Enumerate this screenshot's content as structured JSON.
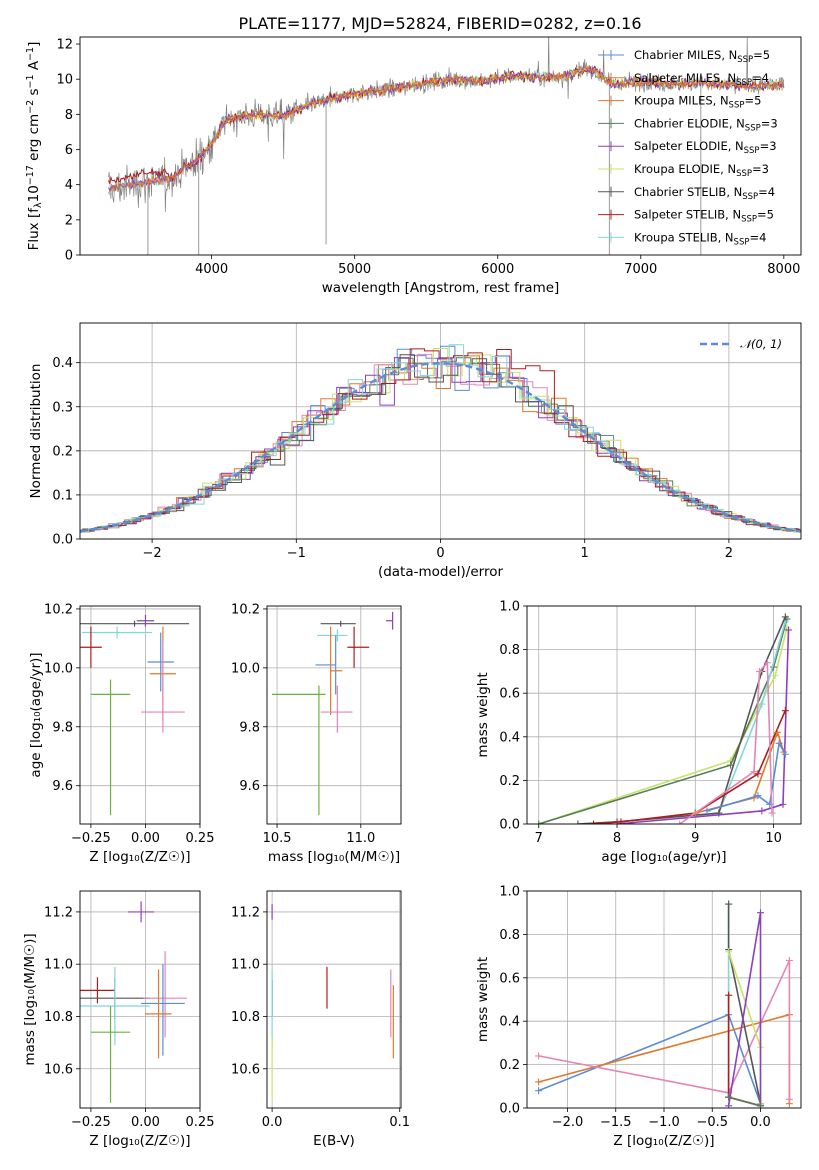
{
  "figure_title": "PLATE=1177, MJD=52824, FIBERID=0282, z=0.16",
  "colors": {
    "chabrier_miles": "#5b8bd9",
    "salpeter_miles": "#e07a2b",
    "kroupa_miles": "#e07a2b",
    "chabrier_elodie": "#5a7d5a",
    "salpeter_elodie": "#8e3fbf",
    "kroupa_elodie": "#c8e36a",
    "chabrier_stelib": "#555555",
    "salpeter_stelib": "#b01c1c",
    "kroupa_stelib": "#7fd6dc",
    "pink": "#e485b6",
    "olive": "#6bb23a",
    "grey_data": "#808080",
    "normal": "#5b8bd9"
  },
  "chart_data": [
    {
      "id": "spectrum",
      "type": "line",
      "title": "PLATE=1177, MJD=52824, FIBERID=0282, z=0.16",
      "xlabel": "wavelength [Angstrom, rest frame]",
      "ylabel_parts": [
        "Flux [f",
        "λ",
        "10",
        "−17",
        " erg cm",
        "−2",
        " s",
        "−1",
        " A",
        "−1",
        "]"
      ],
      "xlim": [
        3080,
        8120
      ],
      "ylim": [
        0,
        12.4
      ],
      "xticks": [
        "4000",
        "5000",
        "6000",
        "7000",
        "8000"
      ],
      "yticks": [
        "0",
        "2",
        "4",
        "6",
        "8",
        "10",
        "12"
      ],
      "grid": false,
      "legend_position": "top-right",
      "legend": [
        {
          "label": "Chabrier MILES, N",
          "sub": "SSP",
          "suffix": "=5",
          "color_key": "chabrier_miles"
        },
        {
          "label": "Salpeter MILES, N",
          "sub": "SSP",
          "suffix": "=4",
          "color_key": "salpeter_miles"
        },
        {
          "label": "Kroupa MILES, N",
          "sub": "SSP",
          "suffix": "=5",
          "color_key": "kroupa_miles"
        },
        {
          "label": "Chabrier ELODIE, N",
          "sub": "SSP",
          "suffix": "=3",
          "color_key": "chabrier_elodie"
        },
        {
          "label": "Salpeter ELODIE, N",
          "sub": "SSP",
          "suffix": "=3",
          "color_key": "salpeter_elodie"
        },
        {
          "label": "Kroupa ELODIE, N",
          "sub": "SSP",
          "suffix": "=3",
          "color_key": "kroupa_elodie"
        },
        {
          "label": "Chabrier STELIB, N",
          "sub": "SSP",
          "suffix": "=4",
          "color_key": "chabrier_stelib"
        },
        {
          "label": "Salpeter STELIB, N",
          "sub": "SSP",
          "suffix": "=5",
          "color_key": "salpeter_stelib"
        },
        {
          "label": "Kroupa STELIB, N",
          "sub": "SSP",
          "suffix": "=4",
          "color_key": "kroupa_stelib"
        }
      ],
      "data_trend": {
        "x": [
          3280,
          3500,
          3700,
          3800,
          3900,
          4000,
          4100,
          4300,
          4500,
          4700,
          4900,
          5100,
          5300,
          5500,
          5700,
          5900,
          6100,
          6300,
          6500,
          6600,
          6700,
          6800,
          7000,
          7200,
          7400,
          7600,
          7800,
          8000
        ],
        "y": [
          3.7,
          4.1,
          4.3,
          4.9,
          5.4,
          6.3,
          7.7,
          8.0,
          7.9,
          8.6,
          9.0,
          9.3,
          9.5,
          9.8,
          10.0,
          9.9,
          10.2,
          10.1,
          10.2,
          10.6,
          10.4,
          9.7,
          9.9,
          9.7,
          9.8,
          9.7,
          9.6,
          9.7
        ]
      }
    },
    {
      "id": "residuals",
      "type": "step-histogram",
      "xlabel": "(data-model)/error",
      "ylabel": "Normed distribution",
      "xlim": [
        -2.5,
        2.5
      ],
      "ylim": [
        0,
        0.49
      ],
      "xticks": [
        "−2",
        "−1",
        "0",
        "1",
        "2"
      ],
      "yticks": [
        "0.0",
        "0.1",
        "0.2",
        "0.3",
        "0.4"
      ],
      "grid": true,
      "legend_position": "top-right",
      "legend_label": "𝒩(0, 1)",
      "bin_width": 0.1,
      "reference_curve": "normal(0,1)"
    },
    {
      "id": "age_vs_Z",
      "type": "errorbar",
      "xlabel": "Z [log₁₀(Z/Z☉)]",
      "ylabel": "age  [log₁₀(age/yr)]",
      "xlim": [
        -0.3,
        0.25
      ],
      "ylim": [
        9.47,
        10.21
      ],
      "xticks": [
        "−0.25",
        "0.00",
        "0.25"
      ],
      "yticks": [
        "9.6",
        "9.8",
        "10.0",
        "10.2"
      ],
      "points": [
        {
          "c": "chabrier_stelib",
          "x": -0.05,
          "ex": [
            0.25,
            0.25
          ],
          "y": 10.15,
          "ey": [
            0.01,
            0.01
          ]
        },
        {
          "c": "salpeter_elodie",
          "x": 0.0,
          "ex": [
            0.04,
            0.04
          ],
          "y": 10.16,
          "ey": [
            0.02,
            0.02
          ]
        },
        {
          "c": "kroupa_stelib",
          "x": -0.13,
          "ex": [
            0.16,
            0.16
          ],
          "y": 10.12,
          "ey": [
            0.02,
            0.02
          ]
        },
        {
          "c": "salpeter_stelib",
          "x": -0.25,
          "ex": [
            0.05,
            0.05
          ],
          "y": 10.07,
          "ey": [
            0.07,
            0.07
          ]
        },
        {
          "c": "chabrier_miles",
          "x": 0.07,
          "ex": [
            0.06,
            0.06
          ],
          "y": 10.02,
          "ey": [
            0.1,
            0.1
          ]
        },
        {
          "c": "salpeter_miles",
          "x": 0.08,
          "ex": [
            0.06,
            0.06
          ],
          "y": 9.98,
          "ey": [
            0.16,
            0.16
          ]
        },
        {
          "c": "pink",
          "x": 0.08,
          "ex": [
            0.1,
            0.1
          ],
          "y": 9.85,
          "ey": [
            0.07,
            0.24
          ]
        },
        {
          "c": "olive",
          "x": -0.16,
          "ex": [
            0.09,
            0.09
          ],
          "y": 9.91,
          "ey": [
            0.41,
            0.05
          ]
        }
      ]
    },
    {
      "id": "age_vs_mass",
      "type": "errorbar",
      "xlabel": "mass [log₁₀(M/M☉)]",
      "ylabel": "",
      "xlim": [
        10.44,
        11.24
      ],
      "ylim": [
        9.47,
        10.21
      ],
      "xticks": [
        "10.5",
        "11.0"
      ],
      "yticks": [
        "9.6",
        "9.8",
        "10.0",
        "10.2"
      ],
      "points": [
        {
          "c": "chabrier_stelib",
          "x": 10.88,
          "ex": [
            0.12,
            0.09
          ],
          "y": 10.15,
          "ey": [
            0.01,
            0.01
          ]
        },
        {
          "c": "salpeter_elodie",
          "x": 11.19,
          "ex": [
            0.04,
            0.0
          ],
          "y": 10.16,
          "ey": [
            0.03,
            0.03
          ]
        },
        {
          "c": "kroupa_stelib",
          "x": 10.86,
          "ex": [
            0.12,
            0.06
          ],
          "y": 10.11,
          "ey": [
            0.02,
            0.02
          ]
        },
        {
          "c": "salpeter_stelib",
          "x": 10.96,
          "ex": [
            0.04,
            0.09
          ],
          "y": 10.07,
          "ey": [
            0.07,
            0.07
          ]
        },
        {
          "c": "chabrier_miles",
          "x": 10.85,
          "ex": [
            0.12,
            0.0
          ],
          "y": 10.01,
          "ey": [
            0.1,
            0.1
          ]
        },
        {
          "c": "salpeter_miles",
          "x": 10.82,
          "ex": [
            0.0,
            0.07
          ],
          "y": 9.99,
          "ey": [
            0.15,
            0.15
          ]
        },
        {
          "c": "pink",
          "x": 10.86,
          "ex": [
            0.1,
            0.09
          ],
          "y": 9.85,
          "ey": [
            0.07,
            0.09
          ]
        },
        {
          "c": "olive",
          "x": 10.75,
          "ex": [
            0.28,
            0.04
          ],
          "y": 9.91,
          "ey": [
            0.41,
            0.03
          ]
        }
      ]
    },
    {
      "id": "cum_weight_vs_age",
      "type": "line",
      "xlabel": "age  [log₁₀(age/yr)]",
      "ylabel": "mass weight",
      "xlim": [
        6.85,
        10.35
      ],
      "ylim": [
        0,
        1
      ],
      "xticks": [
        "7",
        "8",
        "9",
        "10"
      ],
      "yticks": [
        "0.0",
        "0.2",
        "0.4",
        "0.6",
        "0.8",
        "1.0"
      ],
      "grid": true,
      "series": [
        {
          "c": "kroupa_elodie",
          "x": [
            7.0,
            9.45,
            10.02,
            10.17
          ],
          "y": [
            0.0,
            0.29,
            0.68,
            0.9
          ]
        },
        {
          "c": "chabrier_elodie",
          "x": [
            7.0,
            9.45,
            10.0,
            10.17
          ],
          "y": [
            0.0,
            0.27,
            0.72,
            0.94
          ]
        },
        {
          "c": "kroupa_stelib",
          "x": [
            9.3,
            9.85,
            10.15
          ],
          "y": [
            0.05,
            0.55,
            0.93
          ]
        },
        {
          "c": "chabrier_stelib",
          "x": [
            7.5,
            8.0,
            9.3,
            9.85,
            10.15
          ],
          "y": [
            0.0,
            0.01,
            0.05,
            0.7,
            0.95
          ]
        },
        {
          "c": "salpeter_elodie",
          "x": [
            8.0,
            9.85,
            10.12,
            10.19
          ],
          "y": [
            0.0,
            0.06,
            0.09,
            0.89
          ]
        },
        {
          "c": "salpeter_stelib",
          "x": [
            7.7,
            8.05,
            9.0,
            9.8,
            10.15
          ],
          "y": [
            0.0,
            0.01,
            0.05,
            0.23,
            0.52
          ]
        },
        {
          "c": "salpeter_miles",
          "x": [
            9.0,
            9.75,
            10.05,
            10.13
          ],
          "y": [
            0.05,
            0.12,
            0.42,
            0.33
          ]
        },
        {
          "c": "chabrier_miles",
          "x": [
            9.15,
            9.8,
            9.95,
            10.07,
            10.15
          ],
          "y": [
            0.06,
            0.13,
            0.09,
            0.37,
            0.32
          ]
        },
        {
          "c": "pink",
          "x": [
            8.8,
            9.75,
            9.82,
            9.92,
            9.98
          ],
          "y": [
            0.0,
            0.24,
            0.7,
            0.74,
            0.05
          ]
        }
      ]
    },
    {
      "id": "mass_vs_Z",
      "type": "errorbar",
      "xlabel": "Z [log₁₀(Z/Z☉)]",
      "ylabel": "mass [log₁₀(M/M☉)]",
      "xlim": [
        -0.3,
        0.25
      ],
      "ylim": [
        10.45,
        11.28
      ],
      "xticks": [
        "−0.25",
        "0.00",
        "0.25"
      ],
      "yticks": [
        "10.6",
        "10.8",
        "11.0",
        "11.2"
      ],
      "points": [
        {
          "c": "salpeter_elodie",
          "x": -0.02,
          "ex": [
            0.06,
            0.06
          ],
          "y": 11.2,
          "ey": [
            0.04,
            0.04
          ]
        },
        {
          "c": "salpeter_stelib",
          "x": -0.22,
          "ex": [
            0.08,
            0.08
          ],
          "y": 10.9,
          "ey": [
            0.05,
            0.05
          ]
        },
        {
          "c": "chabrier_stelib",
          "x": -0.14,
          "ex": [
            0.16,
            0.16
          ],
          "y": 10.87,
          "ey": [
            0.08,
            0.08
          ]
        },
        {
          "c": "pink",
          "x": 0.09,
          "ex": [
            0.1,
            0.1
          ],
          "y": 10.87,
          "ey": [
            0.15,
            0.18
          ]
        },
        {
          "c": "chabrier_miles",
          "x": 0.08,
          "ex": [
            0.1,
            0.1
          ],
          "y": 10.85,
          "ey": [
            0.2,
            0.15
          ]
        },
        {
          "c": "kroupa_stelib",
          "x": -0.14,
          "ex": [
            0.16,
            0.16
          ],
          "y": 10.84,
          "ey": [
            0.15,
            0.15
          ]
        },
        {
          "c": "salpeter_miles",
          "x": 0.06,
          "ex": [
            0.06,
            0.06
          ],
          "y": 10.81,
          "ey": [
            0.17,
            0.17
          ]
        },
        {
          "c": "olive",
          "x": -0.16,
          "ex": [
            0.09,
            0.09
          ],
          "y": 10.74,
          "ey": [
            0.27,
            0.1
          ]
        }
      ]
    },
    {
      "id": "mass_vs_ebv",
      "type": "errorbar",
      "xlabel": "E(B-V)",
      "ylabel": "",
      "xlim": [
        -0.004,
        0.101
      ],
      "ylim": [
        10.45,
        11.28
      ],
      "xticks": [
        "0.0",
        "0.1"
      ],
      "yticks": [
        "10.6",
        "10.8",
        "11.0",
        "11.2"
      ],
      "points": [
        {
          "c": "salpeter_elodie",
          "x": 0.0,
          "ex": [
            0,
            0
          ],
          "y": 11.2,
          "ey": [
            0.03,
            0.03
          ]
        },
        {
          "c": "salpeter_stelib",
          "x": 0.043,
          "ex": [
            0,
            0
          ],
          "y": 10.91,
          "ey": [
            0.08,
            0.08
          ]
        },
        {
          "c": "chabrier_stelib",
          "x": 0.0,
          "ex": [
            0,
            0
          ],
          "y": 10.87,
          "ey": [
            0.07,
            0.07
          ]
        },
        {
          "c": "kroupa_stelib",
          "x": 0.0,
          "ex": [
            0,
            0
          ],
          "y": 10.83,
          "ey": [
            0.15,
            0.15
          ]
        },
        {
          "c": "pink",
          "x": 0.093,
          "ex": [
            0,
            0
          ],
          "y": 10.85,
          "ey": [
            0.13,
            0.13
          ]
        },
        {
          "c": "salpeter_miles",
          "x": 0.095,
          "ex": [
            0,
            0
          ],
          "y": 10.78,
          "ey": [
            0.14,
            0.14
          ]
        },
        {
          "c": "kroupa_elodie",
          "x": 0.0,
          "ex": [
            0,
            0
          ],
          "y": 10.6,
          "ey": [
            0.12,
            0.12
          ]
        }
      ]
    },
    {
      "id": "cum_weight_vs_Z",
      "type": "line",
      "xlabel": "Z [log₁₀(Z/Z☉)]",
      "ylabel": "mass weight",
      "xlim": [
        -2.42,
        0.42
      ],
      "ylim": [
        0,
        1
      ],
      "xticks": [
        "−2.0",
        "−1.5",
        "−1.0",
        "−0.5",
        "0.0"
      ],
      "yticks": [
        "0.0",
        "0.2",
        "0.4",
        "0.6",
        "0.8",
        "1.0"
      ],
      "grid": true,
      "series": [
        {
          "c": "chabrier_miles",
          "x": [
            -2.3,
            -0.33,
            0.0
          ],
          "y": [
            0.08,
            0.43,
            0.02
          ]
        },
        {
          "c": "salpeter_miles",
          "x": [
            -2.3,
            0.3,
            0.3
          ],
          "y": [
            0.12,
            0.43,
            0.02
          ]
        },
        {
          "c": "pink",
          "x": [
            -2.3,
            -0.33,
            0.3,
            0.3
          ],
          "y": [
            0.24,
            0.07,
            0.68,
            0.04
          ]
        },
        {
          "c": "kroupa_stelib",
          "x": [
            -0.33,
            -0.33,
            -0.33
          ],
          "y": [
            0.94,
            0.73,
            0.05
          ]
        },
        {
          "c": "chabrier_stelib",
          "x": [
            -0.33,
            -0.33,
            0.0
          ],
          "y": [
            0.94,
            0.73,
            0.02
          ]
        },
        {
          "c": "kroupa_elodie",
          "x": [
            -0.33,
            0.0,
            0.0
          ],
          "y": [
            0.72,
            0.28,
            0.02
          ]
        },
        {
          "c": "salpeter_elodie",
          "x": [
            -0.33,
            0.0,
            0.0
          ],
          "y": [
            0.01,
            0.9,
            0.01
          ]
        },
        {
          "c": "salpeter_stelib",
          "x": [
            -0.33,
            -0.33,
            0.0
          ],
          "y": [
            0.52,
            0.05,
            0.01
          ]
        },
        {
          "c": "chabrier_elodie",
          "x": [
            -0.33,
            0.0
          ],
          "y": [
            0.05,
            0.01
          ]
        }
      ]
    }
  ]
}
